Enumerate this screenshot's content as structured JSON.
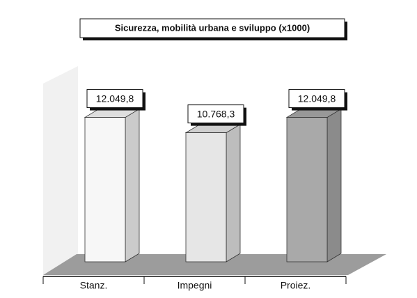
{
  "chart_data": {
    "type": "bar3d",
    "title": "Sicurezza, mobilità urbana e sviluppo (x1000)",
    "categories": [
      "Stanz.",
      "Impegni",
      "Proiez."
    ],
    "values": [
      12049.8,
      10768.3,
      12049.8
    ],
    "value_labels": [
      "12.049,8",
      "10.768,3",
      "12.049,8"
    ],
    "colors": [
      "#f7f7f7",
      "#e6e6e6",
      "#a9a9a9"
    ],
    "ylim": [
      0,
      14000
    ]
  }
}
